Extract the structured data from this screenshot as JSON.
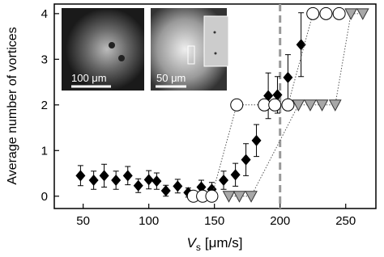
{
  "chart_data": {
    "type": "scatter",
    "xlabel": {
      "symbol": "V",
      "subscript": "s",
      "unit": "[μm/s]"
    },
    "ylabel": "Average number of vortices",
    "xlim": [
      28,
      273
    ],
    "ylim": [
      -0.27,
      4.21
    ],
    "xticks": [
      50,
      100,
      150,
      200,
      250
    ],
    "yticks": [
      0,
      1,
      2,
      3,
      4
    ],
    "vline": 200,
    "insets": [
      "100 μm",
      "50 μm"
    ],
    "series": [
      {
        "marker": "diamond",
        "color": "#000000",
        "line": false,
        "x": [
          48,
          58,
          66,
          75,
          84,
          92,
          100,
          106,
          113,
          122,
          130,
          140,
          148,
          157,
          166,
          174,
          182,
          191,
          198,
          206,
          216
        ],
        "values": [
          0.45,
          0.35,
          0.45,
          0.35,
          0.45,
          0.23,
          0.36,
          0.33,
          0.12,
          0.22,
          0.08,
          0.2,
          0.15,
          0.35,
          0.47,
          0.8,
          1.22,
          2.2,
          2.22,
          2.6,
          3.32
        ],
        "errors": [
          0.22,
          0.2,
          0.25,
          0.2,
          0.2,
          0.15,
          0.2,
          0.18,
          0.12,
          0.15,
          0.1,
          0.15,
          0.15,
          0.2,
          0.25,
          0.35,
          0.35,
          0.5,
          0.4,
          0.5,
          0.7
        ]
      },
      {
        "marker": "circle",
        "color": "#ffffff",
        "line": true,
        "x": [
          134,
          141,
          148,
          167,
          188,
          196,
          206,
          225,
          235,
          245
        ],
        "values": [
          0,
          0,
          0,
          2,
          2,
          2,
          2,
          4,
          4,
          4
        ]
      },
      {
        "marker": "triangle",
        "color": "#a8a8a8",
        "line": true,
        "x": [
          161,
          169,
          178,
          214,
          223,
          232,
          242,
          254,
          263
        ],
        "values": [
          0,
          0,
          0,
          2,
          2,
          2,
          2,
          4,
          4
        ]
      }
    ]
  }
}
